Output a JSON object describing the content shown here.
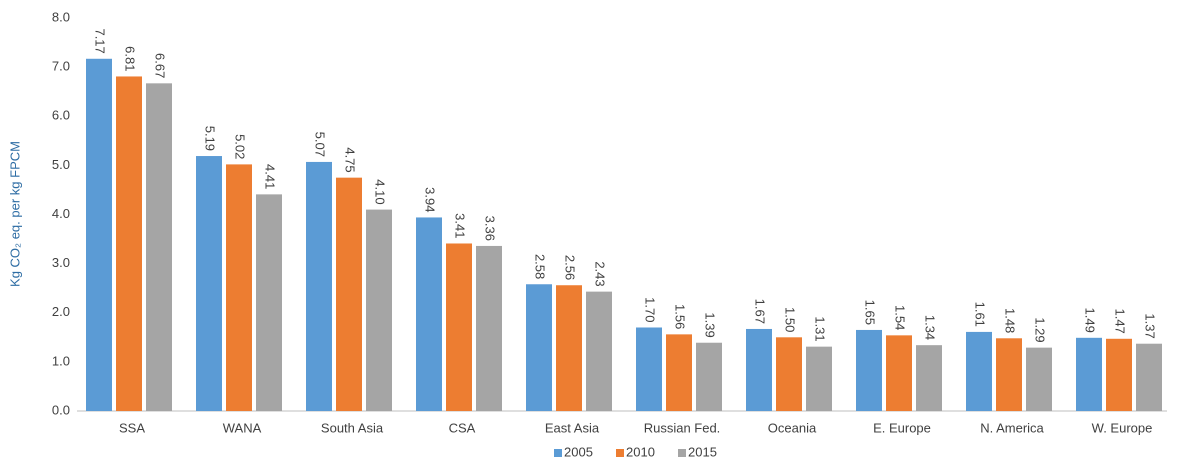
{
  "chart_data": {
    "type": "bar",
    "y_label": "Kg CO₂ eq. per kg FPCM",
    "categories": [
      "SSA",
      "WANA",
      "South Asia",
      "CSA",
      "East Asia",
      "Russian Fed.",
      "Oceania",
      "E. Europe",
      "N. America",
      "W. Europe"
    ],
    "series": [
      {
        "name": "2005",
        "color": "#5b9bd5",
        "values": [
          7.17,
          5.19,
          5.07,
          3.94,
          2.58,
          1.7,
          1.67,
          1.65,
          1.61,
          1.49
        ],
        "value_labels": [
          "7.17",
          "5.19",
          "5.07",
          "3.94",
          "2.58",
          "1.70",
          "1.67",
          "1.65",
          "1.61",
          "1.49"
        ]
      },
      {
        "name": "2010",
        "color": "#ed7d31",
        "values": [
          6.81,
          5.02,
          4.75,
          3.41,
          2.56,
          1.56,
          1.5,
          1.54,
          1.48,
          1.47
        ],
        "value_labels": [
          "6.81",
          "5.02",
          "4.75",
          "3.41",
          "2.56",
          "1.56",
          "1.50",
          "1.54",
          "1.48",
          "1.47"
        ]
      },
      {
        "name": "2015",
        "color": "#a5a5a5",
        "values": [
          6.67,
          4.41,
          4.1,
          3.36,
          2.43,
          1.39,
          1.31,
          1.34,
          1.29,
          1.37
        ],
        "value_labels": [
          "6.67",
          "4.41",
          "4.10",
          "3.36",
          "2.43",
          "1.39",
          "1.31",
          "1.34",
          "1.29",
          "1.37"
        ]
      }
    ],
    "ylim": [
      0,
      8
    ],
    "yticks": [
      {
        "value": 0,
        "label": "0.0"
      },
      {
        "value": 1,
        "label": "1.0"
      },
      {
        "value": 2,
        "label": "2.0"
      },
      {
        "value": 3,
        "label": "3.0"
      },
      {
        "value": 4,
        "label": "4.0"
      },
      {
        "value": 5,
        "label": "5.0"
      },
      {
        "value": 6,
        "label": "6.0"
      },
      {
        "value": 7,
        "label": "7.0"
      },
      {
        "value": 8,
        "label": "8.0"
      }
    ],
    "grid": false,
    "legend": "bottom"
  }
}
